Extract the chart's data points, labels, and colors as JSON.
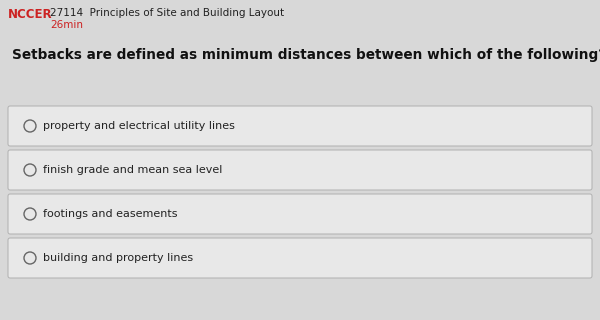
{
  "bg_color": "#d8d8d8",
  "nccer_text": "NCCER",
  "nccer_color": "#cc2222",
  "title_text": "27114  Principles of Site and Building Layout",
  "title_color": "#222222",
  "subtitle_text": "26min",
  "subtitle_color": "#cc2222",
  "question": "Setbacks are defined as minimum distances between which of the following?",
  "question_color": "#111111",
  "options": [
    "property and electrical utility lines",
    "finish grade and mean sea level",
    "footings and easements",
    "building and property lines"
  ],
  "option_box_facecolor": "#e8e8e8",
  "option_box_edgecolor": "#b0b0b0",
  "option_text_color": "#222222",
  "circle_edgecolor": "#666666",
  "circle_facecolor": "#e8e8e8"
}
